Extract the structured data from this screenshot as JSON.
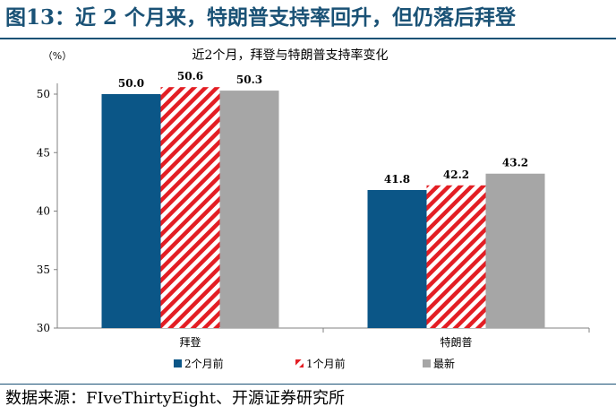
{
  "figure_title": "图13：近 2 个月来，特朗普支持率回升，但仍落后拜登",
  "source": "数据来源：FIveThirtyEight、开源证券研究所",
  "chart_data": {
    "type": "bar",
    "title": "近2个月，拜登与特朗普支持率变化",
    "ylabel": "（%）",
    "categories": [
      "拜登",
      "特朗普"
    ],
    "series": [
      {
        "name": "2个月前",
        "values": [
          50.0,
          41.8
        ],
        "color": "#0b5687",
        "pattern": "solid"
      },
      {
        "name": "1个月前",
        "values": [
          50.6,
          42.2
        ],
        "color": "#e31e24",
        "pattern": "diagonal-stripes"
      },
      {
        "name": "最新",
        "values": [
          50.3,
          43.2
        ],
        "color": "#a6a6a6",
        "pattern": "solid"
      }
    ],
    "data_labels": [
      [
        "50.0",
        "41.8"
      ],
      [
        "50.6",
        "42.2"
      ],
      [
        "50.3",
        "43.2"
      ]
    ],
    "ylim": [
      30,
      50
    ],
    "yticks": [
      30,
      35,
      40,
      45,
      50
    ],
    "grid": false,
    "legend_position": "bottom"
  }
}
